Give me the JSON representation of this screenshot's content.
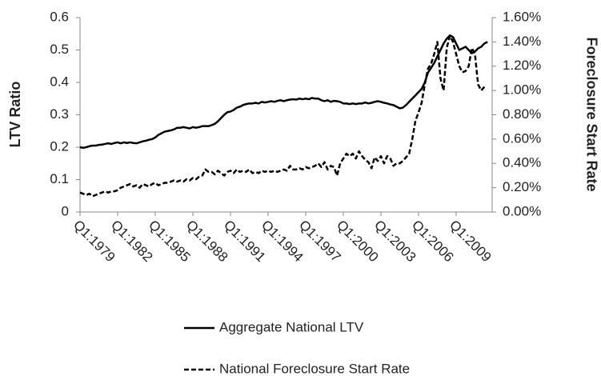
{
  "chart_data": {
    "type": "line",
    "y_label": "LTV Ratio",
    "y2_label": "Foreclosure Start Rate",
    "categories": [
      "Q1:1979",
      null,
      null,
      null,
      null,
      null,
      null,
      null,
      null,
      null,
      null,
      null,
      "Q1:1982",
      null,
      null,
      null,
      null,
      null,
      null,
      null,
      null,
      null,
      null,
      null,
      "Q1:1985",
      null,
      null,
      null,
      null,
      null,
      null,
      null,
      null,
      null,
      null,
      null,
      "Q1:1988",
      null,
      null,
      null,
      null,
      null,
      null,
      null,
      null,
      null,
      null,
      null,
      "Q1:1991",
      null,
      null,
      null,
      null,
      null,
      null,
      null,
      null,
      null,
      null,
      null,
      "Q1:1994",
      null,
      null,
      null,
      null,
      null,
      null,
      null,
      null,
      null,
      null,
      null,
      "Q1:1997",
      null,
      null,
      null,
      null,
      null,
      null,
      null,
      null,
      null,
      null,
      null,
      "Q1:2000",
      null,
      null,
      null,
      null,
      null,
      null,
      null,
      null,
      null,
      null,
      null,
      "Q1:2003",
      null,
      null,
      null,
      null,
      null,
      null,
      null,
      null,
      null,
      null,
      null,
      "Q1:2006",
      null,
      null,
      null,
      null,
      null,
      null,
      null,
      null,
      null,
      null,
      null,
      "Q1:2009",
      null,
      null,
      null,
      null,
      null,
      null,
      null,
      null,
      null,
      null
    ],
    "series": [
      {
        "name": "Aggregate National LTV",
        "color": "#000000",
        "dash": "solid",
        "values": [
          0.2,
          0.198,
          0.2,
          0.203,
          0.205,
          0.205,
          0.207,
          0.208,
          0.21,
          0.212,
          0.21,
          0.213,
          0.215,
          0.212,
          0.215,
          0.213,
          0.215,
          0.213,
          0.212,
          0.215,
          0.218,
          0.22,
          0.223,
          0.225,
          0.23,
          0.238,
          0.243,
          0.248,
          0.25,
          0.252,
          0.255,
          0.26,
          0.26,
          0.262,
          0.26,
          0.258,
          0.262,
          0.26,
          0.262,
          0.265,
          0.265,
          0.265,
          0.268,
          0.272,
          0.28,
          0.29,
          0.3,
          0.308,
          0.31,
          0.315,
          0.322,
          0.325,
          0.33,
          0.333,
          0.335,
          0.335,
          0.337,
          0.335,
          0.34,
          0.338,
          0.34,
          0.342,
          0.34,
          0.343,
          0.345,
          0.342,
          0.345,
          0.347,
          0.348,
          0.347,
          0.35,
          0.348,
          0.35,
          0.348,
          0.352,
          0.35,
          0.35,
          0.345,
          0.342,
          0.345,
          0.34,
          0.343,
          0.342,
          0.34,
          0.335,
          0.335,
          0.333,
          0.335,
          0.333,
          0.335,
          0.335,
          0.338,
          0.335,
          0.337,
          0.34,
          0.342,
          0.34,
          0.337,
          0.335,
          0.332,
          0.33,
          0.325,
          0.32,
          0.322,
          0.33,
          0.34,
          0.35,
          0.36,
          0.37,
          0.38,
          0.4,
          0.43,
          0.445,
          0.46,
          0.48,
          0.5,
          0.52,
          0.535,
          0.545,
          0.54,
          0.52,
          0.5,
          0.505,
          0.51,
          0.5,
          0.49,
          0.495,
          0.505,
          0.51,
          0.52,
          0.525
        ]
      },
      {
        "name": "National Foreclosure Start Rate",
        "color": "#000000",
        "dash": "dashed",
        "axis": "y2",
        "values": [
          0.16,
          0.15,
          0.14,
          0.15,
          0.13,
          0.14,
          0.15,
          0.16,
          0.17,
          0.16,
          0.17,
          0.17,
          0.18,
          0.2,
          0.21,
          0.22,
          0.23,
          0.21,
          0.22,
          0.2,
          0.23,
          0.22,
          0.21,
          0.23,
          0.24,
          0.22,
          0.23,
          0.24,
          0.24,
          0.25,
          0.26,
          0.25,
          0.26,
          0.25,
          0.27,
          0.26,
          0.28,
          0.27,
          0.29,
          0.3,
          0.35,
          0.33,
          0.33,
          0.31,
          0.34,
          0.32,
          0.3,
          0.33,
          0.34,
          0.32,
          0.35,
          0.33,
          0.34,
          0.33,
          0.35,
          0.32,
          0.33,
          0.32,
          0.34,
          0.33,
          0.34,
          0.33,
          0.34,
          0.33,
          0.34,
          0.35,
          0.34,
          0.38,
          0.35,
          0.35,
          0.36,
          0.35,
          0.37,
          0.36,
          0.37,
          0.38,
          0.4,
          0.37,
          0.41,
          0.35,
          0.38,
          0.37,
          0.3,
          0.4,
          0.44,
          0.48,
          0.46,
          0.48,
          0.44,
          0.5,
          0.46,
          0.43,
          0.41,
          0.36,
          0.45,
          0.42,
          0.46,
          0.4,
          0.46,
          0.44,
          0.38,
          0.4,
          0.4,
          0.42,
          0.45,
          0.48,
          0.6,
          0.75,
          0.82,
          0.9,
          1.05,
          1.18,
          1.22,
          1.3,
          1.4,
          1.1,
          1.0,
          1.35,
          1.45,
          1.4,
          1.3,
          1.2,
          1.15,
          1.16,
          1.2,
          1.35,
          1.3,
          1.05,
          1.0,
          1.03,
          null
        ]
      }
    ],
    "ylim": [
      0,
      0.6
    ],
    "yticks": [
      0,
      0.1,
      0.2,
      0.3,
      0.4,
      0.5,
      0.6
    ],
    "y2lim": [
      0,
      1.6
    ],
    "y2ticks": [
      {
        "value": 0,
        "label": "0.00%"
      },
      {
        "value": 0.2,
        "label": "0.20%"
      },
      {
        "value": 0.4,
        "label": "0.40%"
      },
      {
        "value": 0.6,
        "label": "0.60%"
      },
      {
        "value": 0.8,
        "label": "0.80%"
      },
      {
        "value": 1.0,
        "label": "1.00%"
      },
      {
        "value": 1.2,
        "label": "1.20%"
      },
      {
        "value": 1.4,
        "label": "1.40%"
      },
      {
        "value": 1.6,
        "label": "1.60%"
      }
    ],
    "grid": false,
    "legend": "bottom"
  }
}
